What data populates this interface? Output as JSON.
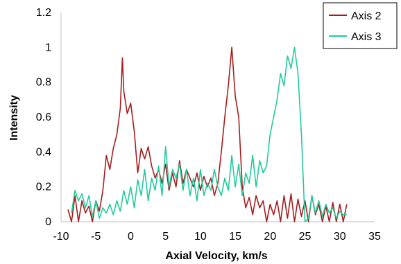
{
  "chart_data": {
    "type": "line",
    "title": "",
    "xlabel": "Axial Velocity, km/s",
    "ylabel": "Intensity",
    "xlim": [
      -10,
      35
    ],
    "ylim": [
      0,
      1.2
    ],
    "xticks": [
      "-10",
      "-5",
      "0",
      "5",
      "10",
      "15",
      "20",
      "25",
      "30",
      "35"
    ],
    "yticks": [
      "0",
      "0.2",
      "0.4",
      "0.6",
      "0.8",
      "1",
      "1.2"
    ],
    "grid": false,
    "legend_position": "top-right",
    "series": [
      {
        "name": "Axis 2",
        "color": "#a61c1c",
        "x": [
          -9,
          -8.5,
          -8,
          -7.5,
          -7,
          -6.5,
          -6,
          -5.5,
          -5,
          -4.5,
          -4,
          -3.5,
          -3,
          -2.5,
          -2,
          -1.5,
          -1.2,
          -1,
          -0.5,
          0,
          0.5,
          1,
          1.5,
          2,
          2.5,
          3,
          3.5,
          4,
          4.5,
          5,
          5.5,
          6,
          6.5,
          7,
          7.5,
          8,
          8.5,
          9,
          9.5,
          10,
          10.5,
          11,
          11.5,
          12,
          12.5,
          13,
          13.5,
          14,
          14.5,
          15,
          15.5,
          16,
          16.5,
          17,
          17.5,
          18,
          18.5,
          19,
          19.5,
          20,
          20.5,
          21,
          21.5,
          22,
          22.5,
          23,
          23.5,
          24,
          24.5,
          25,
          25.5,
          26,
          26.5,
          27,
          27.5,
          28,
          28.5,
          29,
          29.5,
          30,
          30.5,
          31
        ],
        "y": [
          0.07,
          0,
          0.15,
          0,
          0.12,
          0.05,
          0.09,
          0,
          0.12,
          0.06,
          0.18,
          0.38,
          0.3,
          0.42,
          0.5,
          0.65,
          0.94,
          0.75,
          0.62,
          0.68,
          0.52,
          0.28,
          0.42,
          0.36,
          0.43,
          0.32,
          0.25,
          0.3,
          0.22,
          0.33,
          0.18,
          0.28,
          0.2,
          0.35,
          0.22,
          0.3,
          0.25,
          0.2,
          0.28,
          0.18,
          0.26,
          0.2,
          0.25,
          0.15,
          0.22,
          0.4,
          0.6,
          0.78,
          1.0,
          0.72,
          0.6,
          0.2,
          0.08,
          0.14,
          0.04,
          0.15,
          0.08,
          0.12,
          0,
          0.1,
          0.04,
          0.12,
          0,
          0.15,
          0.02,
          0.16,
          0,
          0.13,
          0.03,
          0.12,
          0,
          0.15,
          0.04,
          0.1,
          0,
          0.09,
          0,
          0.11,
          0,
          0.1,
          0,
          0.1
        ]
      },
      {
        "name": "Axis 3",
        "color": "#1fcc9c",
        "x": [
          -8.5,
          -8,
          -7.5,
          -7,
          -6.5,
          -6,
          -5.5,
          -5,
          -4.5,
          -4,
          -3.5,
          -3,
          -2.5,
          -2,
          -1.5,
          -1,
          -0.5,
          0,
          0.5,
          1,
          1.5,
          2,
          2.5,
          3,
          3.5,
          4,
          4.5,
          5,
          5.5,
          6,
          6.5,
          7,
          7.5,
          8,
          8.5,
          9,
          9.5,
          10,
          10.5,
          11,
          11.5,
          12,
          12.5,
          13,
          13.5,
          14,
          14.5,
          15,
          15.5,
          16,
          16.5,
          17,
          17.5,
          18,
          18.5,
          19,
          19.5,
          20,
          20.5,
          21,
          21.5,
          22,
          22.5,
          23,
          23.5,
          24,
          24.5,
          25,
          25.5,
          26,
          26.5,
          27,
          27.5,
          28,
          28.5,
          29,
          29.5,
          30,
          30.5,
          31
        ],
        "y": [
          0.05,
          0.18,
          0.12,
          0.16,
          0.08,
          0.15,
          0.03,
          0.12,
          0.02,
          0.08,
          0.05,
          0.1,
          0.04,
          0.12,
          0.06,
          0.18,
          0.1,
          0.2,
          0.08,
          0.24,
          0.15,
          0.3,
          0.12,
          0.25,
          0.18,
          0.32,
          0.15,
          0.43,
          0.2,
          0.3,
          0.25,
          0.33,
          0.18,
          0.3,
          0.15,
          0.25,
          0.12,
          0.3,
          0.15,
          0.22,
          0.18,
          0.3,
          0.2,
          0.15,
          0.25,
          0.18,
          0.38,
          0.2,
          0.33,
          0.15,
          0.28,
          0.22,
          0.38,
          0.2,
          0.35,
          0.28,
          0.32,
          0.5,
          0.6,
          0.7,
          0.85,
          0.78,
          0.95,
          0.88,
          1.0,
          0.85,
          0.5,
          0.0,
          0.02,
          0.15,
          0.05,
          0.12,
          0.03,
          0.1,
          0.05,
          0.08,
          0.02,
          0.06,
          0.04,
          0.04
        ]
      }
    ]
  }
}
